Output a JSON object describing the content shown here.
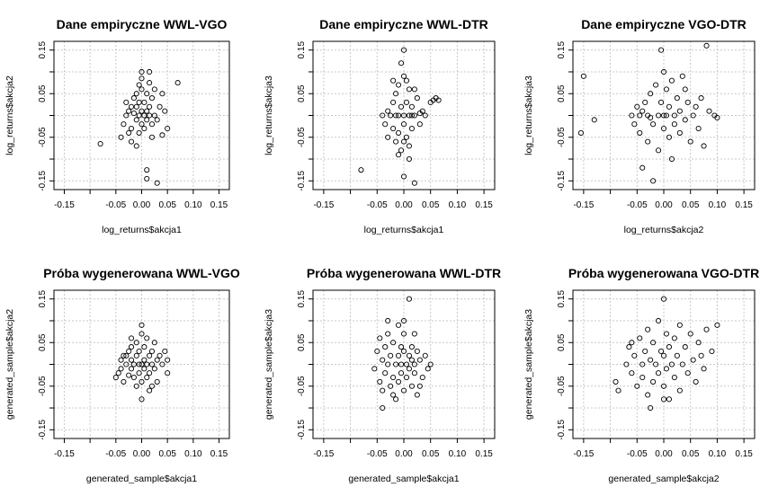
{
  "chart_data": [
    {
      "type": "scatter",
      "title": "Dane empiryczne WWL-VGO",
      "xlabel": "log_returns$akcja1",
      "ylabel": "log_returns$akcja2",
      "xlim": [
        -0.17,
        0.17
      ],
      "ylim": [
        -0.17,
        0.17
      ],
      "xticks": [
        "-0.15",
        "-0.05",
        "0.00",
        "0.05",
        "0.10",
        "0.15"
      ],
      "yticks": [
        "-0.15",
        "-0.05",
        "0.05",
        "0.15"
      ],
      "grid": true,
      "points": [
        [
          -0.08,
          -0.065
        ],
        [
          -0.04,
          -0.05
        ],
        [
          -0.035,
          -0.02
        ],
        [
          -0.03,
          0.0
        ],
        [
          -0.025,
          0.01
        ],
        [
          -0.02,
          0.02
        ],
        [
          -0.02,
          -0.03
        ],
        [
          -0.015,
          0.005
        ],
        [
          -0.015,
          0.04
        ],
        [
          -0.01,
          -0.01
        ],
        [
          -0.01,
          0.02
        ],
        [
          -0.01,
          0.05
        ],
        [
          -0.005,
          0.0
        ],
        [
          -0.005,
          -0.04
        ],
        [
          -0.005,
          0.03
        ],
        [
          0.0,
          0.01
        ],
        [
          0.0,
          -0.02
        ],
        [
          0.0,
          0.06
        ],
        [
          0.0,
          0.085
        ],
        [
          0.005,
          0.0
        ],
        [
          0.005,
          0.03
        ],
        [
          0.005,
          -0.03
        ],
        [
          0.01,
          0.01
        ],
        [
          0.01,
          -0.01
        ],
        [
          0.01,
          0.05
        ],
        [
          0.015,
          0.0
        ],
        [
          0.015,
          0.02
        ],
        [
          0.015,
          0.075
        ],
        [
          0.02,
          -0.02
        ],
        [
          0.02,
          0.04
        ],
        [
          0.025,
          0.0
        ],
        [
          0.025,
          0.06
        ],
        [
          0.03,
          -0.01
        ],
        [
          0.035,
          0.02
        ],
        [
          0.04,
          -0.045
        ],
        [
          0.045,
          0.01
        ],
        [
          0.05,
          -0.03
        ],
        [
          0.07,
          0.075
        ],
        [
          0.01,
          -0.145
        ],
        [
          0.01,
          -0.125
        ],
        [
          0.03,
          -0.155
        ],
        [
          -0.02,
          -0.06
        ],
        [
          -0.01,
          -0.07
        ],
        [
          0.02,
          -0.05
        ],
        [
          -0.03,
          0.03
        ],
        [
          0.0,
          0.1
        ],
        [
          0.04,
          0.05
        ],
        [
          -0.025,
          -0.04
        ],
        [
          0.015,
          0.1
        ],
        [
          -0.005,
          0.07
        ]
      ]
    },
    {
      "type": "scatter",
      "title": "Dane empiryczne WWL-DTR",
      "xlabel": "log_returns$akcja1",
      "ylabel": "log_returns$akcja3",
      "xlim": [
        -0.17,
        0.17
      ],
      "ylim": [
        -0.17,
        0.17
      ],
      "xticks": [
        "-0.15",
        "-0.05",
        "0.00",
        "0.05",
        "0.10",
        "0.15"
      ],
      "yticks": [
        "-0.15",
        "-0.05",
        "0.05",
        "0.15"
      ],
      "grid": true,
      "points": [
        [
          -0.08,
          -0.125
        ],
        [
          -0.04,
          0.0
        ],
        [
          -0.035,
          -0.02
        ],
        [
          -0.03,
          0.01
        ],
        [
          -0.025,
          0.0
        ],
        [
          -0.02,
          0.03
        ],
        [
          -0.02,
          -0.03
        ],
        [
          -0.015,
          -0.06
        ],
        [
          -0.015,
          0.05
        ],
        [
          -0.01,
          0.0
        ],
        [
          -0.01,
          -0.04
        ],
        [
          -0.01,
          0.07
        ],
        [
          -0.005,
          0.02
        ],
        [
          -0.005,
          -0.08
        ],
        [
          0.0,
          0.0
        ],
        [
          0.0,
          0.09
        ],
        [
          0.0,
          -0.02
        ],
        [
          0.0,
          0.15
        ],
        [
          0.005,
          0.03
        ],
        [
          0.005,
          -0.05
        ],
        [
          0.01,
          0.0
        ],
        [
          0.01,
          0.06
        ],
        [
          0.01,
          -0.1
        ],
        [
          0.015,
          0.02
        ],
        [
          0.015,
          -0.03
        ],
        [
          0.02,
          0.0
        ],
        [
          0.025,
          0.04
        ],
        [
          0.03,
          -0.02
        ],
        [
          0.035,
          0.01
        ],
        [
          0.04,
          0.0
        ],
        [
          0.05,
          0.03
        ],
        [
          0.06,
          0.04
        ],
        [
          0.065,
          0.035
        ],
        [
          0.055,
          0.035
        ],
        [
          0.02,
          -0.155
        ],
        [
          0.0,
          -0.14
        ],
        [
          -0.005,
          0.12
        ],
        [
          -0.02,
          0.08
        ],
        [
          0.01,
          -0.07
        ],
        [
          -0.01,
          -0.09
        ],
        [
          0.02,
          0.06
        ],
        [
          0.03,
          0.005
        ],
        [
          -0.03,
          -0.05
        ],
        [
          0.005,
          0.08
        ],
        [
          0.0,
          -0.06
        ],
        [
          -0.015,
          0.0
        ],
        [
          0.015,
          0.0
        ]
      ]
    },
    {
      "type": "scatter",
      "title": "Dane empiryczne VGO-DTR",
      "xlabel": "log_returns$akcja2",
      "ylabel": "log_returns$akcja3",
      "xlim": [
        -0.17,
        0.17
      ],
      "ylim": [
        -0.17,
        0.17
      ],
      "xticks": [
        "-0.15",
        "-0.05",
        "0.00",
        "0.05",
        "0.10",
        "0.15"
      ],
      "yticks": [
        "-0.15",
        "-0.05",
        "0.05",
        "0.15"
      ],
      "grid": true,
      "points": [
        [
          -0.155,
          -0.04
        ],
        [
          -0.15,
          0.09
        ],
        [
          -0.13,
          -0.01
        ],
        [
          -0.06,
          0.0
        ],
        [
          -0.055,
          -0.02
        ],
        [
          -0.05,
          0.02
        ],
        [
          -0.045,
          -0.04
        ],
        [
          -0.04,
          0.01
        ],
        [
          -0.04,
          -0.12
        ],
        [
          -0.035,
          0.03
        ],
        [
          -0.03,
          -0.06
        ],
        [
          -0.03,
          0.0
        ],
        [
          -0.025,
          0.05
        ],
        [
          -0.02,
          -0.02
        ],
        [
          -0.02,
          -0.15
        ],
        [
          -0.015,
          0.07
        ],
        [
          -0.01,
          0.0
        ],
        [
          -0.01,
          -0.08
        ],
        [
          -0.005,
          0.03
        ],
        [
          -0.005,
          0.15
        ],
        [
          0.0,
          -0.03
        ],
        [
          0.0,
          0.1
        ],
        [
          0.005,
          0.0
        ],
        [
          0.005,
          0.06
        ],
        [
          0.01,
          -0.05
        ],
        [
          0.01,
          0.02
        ],
        [
          0.015,
          -0.1
        ],
        [
          0.015,
          0.08
        ],
        [
          0.02,
          0.0
        ],
        [
          0.02,
          -0.02
        ],
        [
          0.025,
          0.04
        ],
        [
          0.03,
          -0.04
        ],
        [
          0.03,
          0.01
        ],
        [
          0.035,
          0.09
        ],
        [
          0.04,
          -0.01
        ],
        [
          0.045,
          0.03
        ],
        [
          0.05,
          -0.06
        ],
        [
          0.055,
          0.0
        ],
        [
          0.06,
          0.02
        ],
        [
          0.065,
          -0.03
        ],
        [
          0.07,
          0.04
        ],
        [
          0.075,
          -0.07
        ],
        [
          0.08,
          0.16
        ],
        [
          0.085,
          0.01
        ],
        [
          0.1,
          -0.005
        ],
        [
          0.095,
          0.0
        ],
        [
          -0.045,
          0.0
        ],
        [
          0.0,
          0.0
        ],
        [
          -0.025,
          -0.005
        ],
        [
          0.04,
          0.06
        ]
      ]
    },
    {
      "type": "scatter",
      "title": "Próba wygenerowana WWL-VGO",
      "xlabel": "generated_sample$akcja1",
      "ylabel": "generated_sample$akcja2",
      "xlim": [
        -0.17,
        0.17
      ],
      "ylim": [
        -0.17,
        0.17
      ],
      "xticks": [
        "-0.15",
        "-0.05",
        "0.00",
        "0.05",
        "0.10",
        "0.15"
      ],
      "yticks": [
        "-0.15",
        "-0.05",
        "0.05",
        "0.15"
      ],
      "grid": true,
      "points": [
        [
          -0.05,
          -0.03
        ],
        [
          -0.045,
          -0.02
        ],
        [
          -0.04,
          -0.01
        ],
        [
          -0.04,
          0.01
        ],
        [
          -0.035,
          -0.04
        ],
        [
          -0.03,
          0.0
        ],
        [
          -0.03,
          0.02
        ],
        [
          -0.025,
          -0.025
        ],
        [
          -0.025,
          0.03
        ],
        [
          -0.02,
          -0.01
        ],
        [
          -0.02,
          0.01
        ],
        [
          -0.02,
          0.04
        ],
        [
          -0.015,
          -0.03
        ],
        [
          -0.015,
          0.0
        ],
        [
          -0.01,
          0.02
        ],
        [
          -0.01,
          -0.05
        ],
        [
          -0.01,
          0.05
        ],
        [
          -0.005,
          0.0
        ],
        [
          -0.005,
          -0.02
        ],
        [
          -0.005,
          0.03
        ],
        [
          0.0,
          0.0
        ],
        [
          0.0,
          -0.04
        ],
        [
          0.0,
          0.07
        ],
        [
          0.0,
          -0.08
        ],
        [
          0.005,
          0.01
        ],
        [
          0.005,
          -0.01
        ],
        [
          0.005,
          0.04
        ],
        [
          0.01,
          0.0
        ],
        [
          0.01,
          -0.03
        ],
        [
          0.01,
          0.06
        ],
        [
          0.015,
          0.02
        ],
        [
          0.015,
          -0.02
        ],
        [
          0.02,
          0.0
        ],
        [
          0.02,
          0.03
        ],
        [
          0.025,
          -0.01
        ],
        [
          0.025,
          0.05
        ],
        [
          0.03,
          0.01
        ],
        [
          0.03,
          -0.04
        ],
        [
          0.035,
          0.02
        ],
        [
          0.04,
          0.0
        ],
        [
          0.045,
          0.03
        ],
        [
          0.05,
          0.01
        ],
        [
          0.05,
          -0.02
        ],
        [
          0.0,
          0.09
        ],
        [
          -0.035,
          0.02
        ],
        [
          0.015,
          -0.06
        ],
        [
          -0.02,
          0.06
        ],
        [
          0.02,
          -0.05
        ]
      ]
    },
    {
      "type": "scatter",
      "title": "Próba wygenerowana WWL-DTR",
      "xlabel": "generated_sample$akcja1",
      "ylabel": "generated_sample$akcja3",
      "xlim": [
        -0.17,
        0.17
      ],
      "ylim": [
        -0.17,
        0.17
      ],
      "xticks": [
        "-0.15",
        "-0.05",
        "0.00",
        "0.05",
        "0.10",
        "0.15"
      ],
      "yticks": [
        "-0.15",
        "-0.05",
        "0.05",
        "0.15"
      ],
      "grid": true,
      "points": [
        [
          -0.055,
          -0.01
        ],
        [
          -0.05,
          0.03
        ],
        [
          -0.045,
          -0.04
        ],
        [
          -0.04,
          0.01
        ],
        [
          -0.04,
          -0.06
        ],
        [
          -0.035,
          0.04
        ],
        [
          -0.035,
          -0.02
        ],
        [
          -0.03,
          0.0
        ],
        [
          -0.03,
          0.07
        ],
        [
          -0.025,
          -0.05
        ],
        [
          -0.025,
          0.02
        ],
        [
          -0.02,
          -0.03
        ],
        [
          -0.02,
          0.05
        ],
        [
          -0.015,
          0.0
        ],
        [
          -0.015,
          -0.08
        ],
        [
          -0.01,
          0.02
        ],
        [
          -0.01,
          -0.04
        ],
        [
          -0.01,
          0.09
        ],
        [
          -0.005,
          0.0
        ],
        [
          -0.005,
          -0.02
        ],
        [
          0.0,
          0.03
        ],
        [
          0.0,
          -0.06
        ],
        [
          0.0,
          0.07
        ],
        [
          0.005,
          0.0
        ],
        [
          0.005,
          -0.03
        ],
        [
          0.01,
          0.02
        ],
        [
          0.01,
          -0.01
        ],
        [
          0.01,
          0.15
        ],
        [
          0.015,
          0.04
        ],
        [
          0.015,
          -0.05
        ],
        [
          0.02,
          0.0
        ],
        [
          0.02,
          -0.02
        ],
        [
          0.025,
          0.03
        ],
        [
          0.025,
          -0.07
        ],
        [
          0.03,
          0.01
        ],
        [
          0.035,
          -0.03
        ],
        [
          0.04,
          0.02
        ],
        [
          0.045,
          -0.01
        ],
        [
          0.05,
          0.0
        ],
        [
          -0.04,
          -0.1
        ],
        [
          -0.03,
          0.1
        ],
        [
          0.0,
          0.1
        ],
        [
          0.02,
          0.07
        ],
        [
          -0.02,
          -0.07
        ],
        [
          0.03,
          -0.05
        ],
        [
          -0.045,
          0.06
        ],
        [
          0.015,
          0.01
        ],
        [
          -0.005,
          0.04
        ]
      ]
    },
    {
      "type": "scatter",
      "title": "Próba wygenerowana VGO-DTR",
      "xlabel": "generated_sample$akcja2",
      "ylabel": "generated_sample$akcja3",
      "xlim": [
        -0.17,
        0.17
      ],
      "ylim": [
        -0.17,
        0.17
      ],
      "xticks": [
        "-0.15",
        "-0.05",
        "0.00",
        "0.05",
        "0.10",
        "0.15"
      ],
      "yticks": [
        "-0.15",
        "-0.05",
        "0.05",
        "0.15"
      ],
      "grid": true,
      "points": [
        [
          -0.09,
          -0.04
        ],
        [
          -0.085,
          -0.06
        ],
        [
          -0.07,
          0.0
        ],
        [
          -0.065,
          0.04
        ],
        [
          -0.06,
          -0.02
        ],
        [
          -0.055,
          0.02
        ],
        [
          -0.05,
          -0.05
        ],
        [
          -0.045,
          0.06
        ],
        [
          -0.04,
          0.0
        ],
        [
          -0.04,
          -0.03
        ],
        [
          -0.035,
          0.03
        ],
        [
          -0.03,
          -0.07
        ],
        [
          -0.03,
          0.08
        ],
        [
          -0.025,
          0.01
        ],
        [
          -0.02,
          -0.04
        ],
        [
          -0.02,
          0.05
        ],
        [
          -0.015,
          0.0
        ],
        [
          -0.01,
          -0.02
        ],
        [
          -0.01,
          0.1
        ],
        [
          -0.005,
          0.03
        ],
        [
          0.0,
          -0.05
        ],
        [
          0.0,
          0.02
        ],
        [
          0.005,
          -0.01
        ],
        [
          0.005,
          0.07
        ],
        [
          0.01,
          -0.08
        ],
        [
          0.01,
          0.04
        ],
        [
          0.015,
          0.0
        ],
        [
          0.02,
          -0.03
        ],
        [
          0.02,
          0.06
        ],
        [
          0.025,
          0.02
        ],
        [
          0.03,
          -0.06
        ],
        [
          0.03,
          0.09
        ],
        [
          0.035,
          0.0
        ],
        [
          0.04,
          0.04
        ],
        [
          0.045,
          -0.02
        ],
        [
          0.05,
          0.07
        ],
        [
          0.055,
          0.01
        ],
        [
          0.06,
          -0.04
        ],
        [
          0.065,
          0.05
        ],
        [
          0.07,
          0.02
        ],
        [
          0.075,
          -0.01
        ],
        [
          0.08,
          0.08
        ],
        [
          0.09,
          0.03
        ],
        [
          0.1,
          0.09
        ],
        [
          0.0,
          0.15
        ],
        [
          -0.025,
          -0.1
        ],
        [
          0.0,
          -0.08
        ],
        [
          -0.06,
          0.05
        ]
      ]
    }
  ]
}
